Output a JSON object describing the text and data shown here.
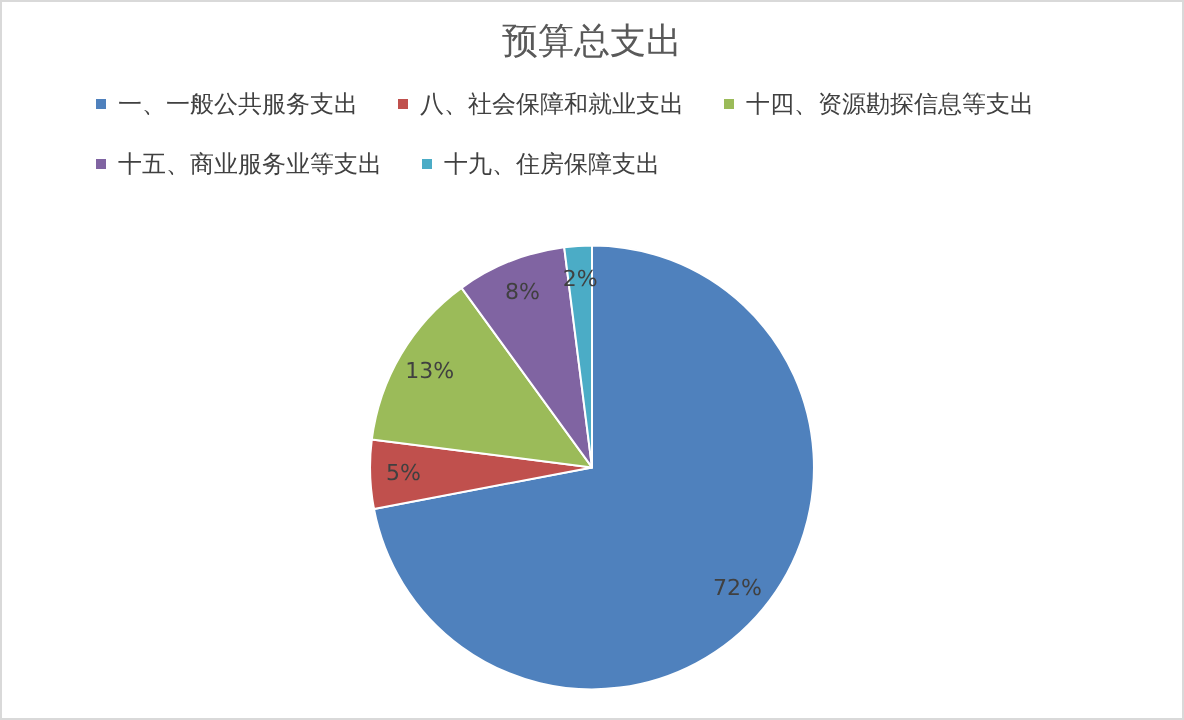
{
  "chart_data": {
    "type": "pie",
    "title": "预算总支出",
    "categories": [
      "一、一般公共服务支出",
      "八、社会保障和就业支出",
      "十四、资源勘探信息等支出",
      "十五、商业服务业等支出",
      "十九、住房保障支出"
    ],
    "values": [
      72,
      5,
      13,
      8,
      2
    ],
    "colors": [
      "#4f81bd",
      "#c0504d",
      "#9bbb59",
      "#8064a2",
      "#4bacc6"
    ],
    "value_labels": [
      "72%",
      "5%",
      "13%",
      "8%",
      "2%"
    ],
    "legend": "top"
  }
}
